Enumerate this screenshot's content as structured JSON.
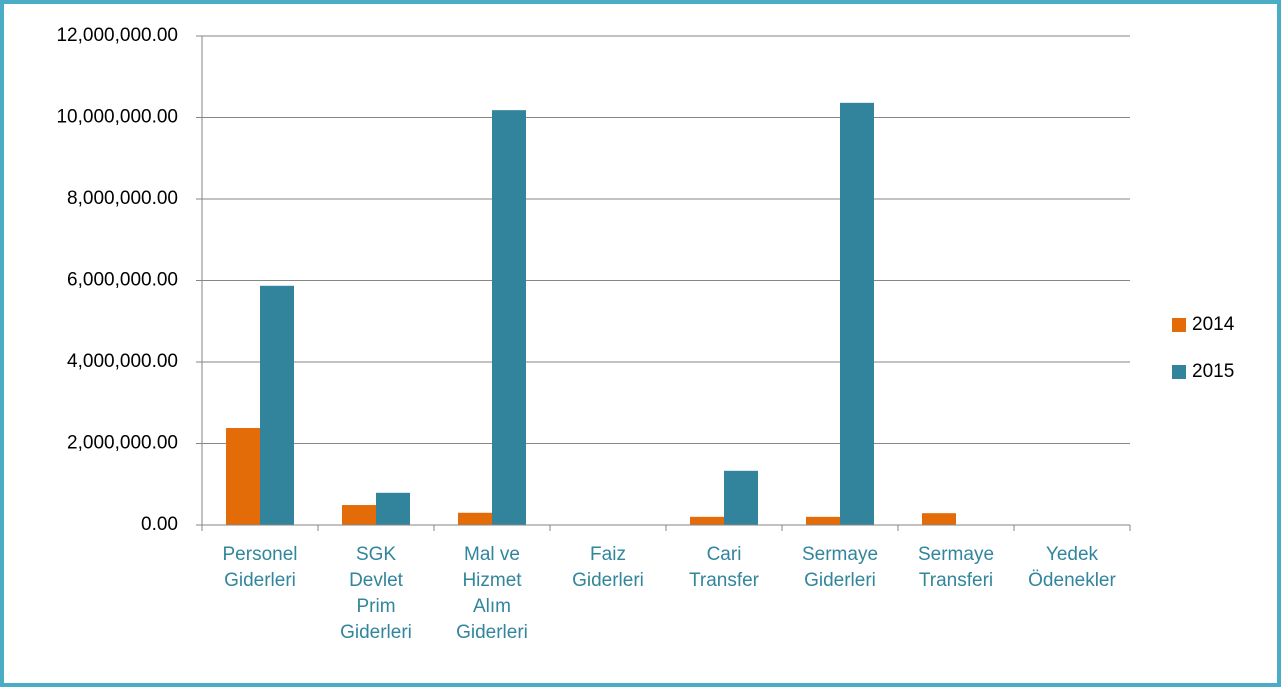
{
  "chart_data": {
    "type": "bar",
    "categories": [
      "Personel\nGiderleri",
      "SGK\nDevlet\nPrim\nGiderleri",
      "Mal ve\nHizmet\nAlım\nGiderleri",
      "Faiz\nGiderleri",
      "Cari\nTransfer",
      "Sermaye\nGiderleri",
      "Sermaye\nTransferi",
      "Yedek\nÖdenekler"
    ],
    "series": [
      {
        "name": "2014",
        "color": "#e36c09",
        "values": [
          2380000,
          490000,
          300000,
          0,
          200000,
          200000,
          290000,
          0
        ]
      },
      {
        "name": "2015",
        "color": "#31849b",
        "values": [
          5870000,
          790000,
          10180000,
          0,
          1330000,
          10360000,
          0,
          0
        ]
      }
    ],
    "ylim": [
      0,
      12000000
    ],
    "yticks": [
      {
        "value": 0,
        "label": "0.00"
      },
      {
        "value": 2000000,
        "label": "2,000,000.00"
      },
      {
        "value": 4000000,
        "label": "4,000,000.00"
      },
      {
        "value": 6000000,
        "label": "6,000,000.00"
      },
      {
        "value": 8000000,
        "label": "8,000,000.00"
      },
      {
        "value": 10000000,
        "label": "10,000,000.00"
      },
      {
        "value": 12000000,
        "label": "12,000,000.00"
      }
    ],
    "grid": true,
    "legend": "right"
  }
}
